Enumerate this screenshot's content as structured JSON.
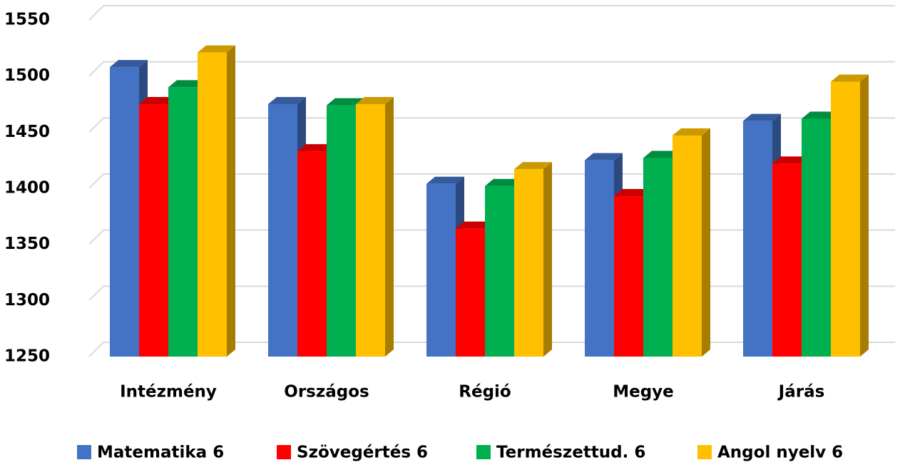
{
  "chart_data": {
    "type": "bar3d",
    "categories": [
      "Intézmény",
      "Országos",
      "Régió",
      "Megye",
      "Járás"
    ],
    "series": [
      {
        "name": "Matematika 6",
        "color": "#4472c4",
        "values": [
          1508,
          1475,
          1404,
          1425,
          1460
        ]
      },
      {
        "name": "Szövegértés 6",
        "color": "#ff0000",
        "values": [
          1475,
          1433,
          1364,
          1393,
          1422
        ]
      },
      {
        "name": "Természettud. 6",
        "color": "#00b050",
        "values": [
          1490,
          1474,
          1402,
          1427,
          1462
        ]
      },
      {
        "name": "Angol nyelv 6",
        "color": "#ffc000",
        "values": [
          1521,
          1475,
          1417,
          1447,
          1495
        ]
      }
    ],
    "ylim": [
      1250,
      1550
    ],
    "yticks": [
      1250,
      1300,
      1350,
      1400,
      1450,
      1500,
      1550
    ],
    "grid": true,
    "legend": "bottom"
  }
}
